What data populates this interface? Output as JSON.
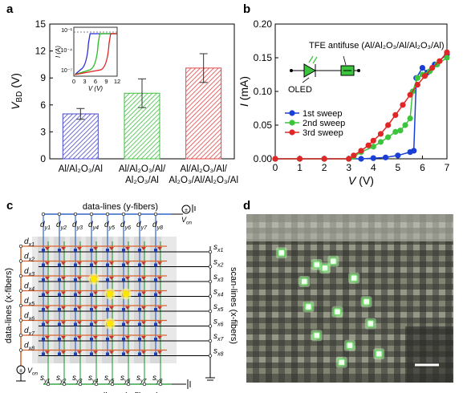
{
  "panels": {
    "a": {
      "label": "a"
    },
    "b": {
      "label": "b"
    },
    "c": {
      "label": "c"
    },
    "d": {
      "label": "d"
    }
  },
  "chart_data": [
    {
      "panel": "a",
      "type": "bar",
      "ylabel": "V_BD (V)",
      "ylim": [
        0,
        15
      ],
      "yticks": [
        0,
        3,
        6,
        9,
        12,
        15
      ],
      "categories": [
        "Al/Al2O3/Al",
        "Al/Al2O3/Al/Al2O3/Al",
        "Al/Al2O3/Al/Al2O3/Al/Al2O3/Al"
      ],
      "category_lines": [
        [
          "Al/Al₂O₃/Al"
        ],
        [
          "Al/Al₂O₃/Al/",
          "Al₂O₃/Al"
        ],
        [
          "Al/Al₂O₃/Al/",
          "Al₂O₃/Al/Al₂O₃/Al"
        ]
      ],
      "values": [
        5.0,
        7.3,
        10.1
      ],
      "errors": [
        0.6,
        1.6,
        1.6
      ],
      "colors": [
        "#4a4ac8",
        "#3cbf3c",
        "#e04545"
      ],
      "inset": {
        "xlabel": "V (V)",
        "ylabel": "I (A)",
        "xticks": [
          0,
          3,
          6,
          9,
          12
        ],
        "ytick_labels": [
          "10⁻¹",
          "10⁻⁴",
          "10⁻⁷"
        ],
        "curves": [
          {
            "color": "#2a2ad8",
            "on_voltage": 4.5
          },
          {
            "color": "#22bb22",
            "on_voltage": 7.2
          },
          {
            "color": "#dd2222",
            "on_voltage": 10.2
          }
        ]
      }
    },
    {
      "panel": "b",
      "type": "line",
      "xlabel": "V (V)",
      "ylabel": "I (mA)",
      "xlim": [
        0,
        7
      ],
      "ylim": [
        0,
        0.2
      ],
      "xticks": [
        0,
        1,
        2,
        3,
        4,
        5,
        6,
        7
      ],
      "yticks": [
        0.0,
        0.05,
        0.1,
        0.15,
        0.2
      ],
      "ytick_labels": [
        "0.00",
        "0.05",
        "0.10",
        "0.15",
        "0.20"
      ],
      "annotations": {
        "device": "TFE antifuse (Al/Al₂O₃/Al/Al₂O₃/Al)",
        "led": "OLED"
      },
      "series": [
        {
          "name": "1st sweep",
          "color": "#1a3fd6",
          "points": [
            [
              0,
              0
            ],
            [
              1,
              0
            ],
            [
              2,
              0
            ],
            [
              3,
              0
            ],
            [
              3.5,
              0
            ],
            [
              4,
              0.001
            ],
            [
              4.5,
              0.002
            ],
            [
              5,
              0.005
            ],
            [
              5.5,
              0.01
            ],
            [
              5.65,
              0.012
            ],
            [
              5.75,
              0.12
            ],
            [
              6,
              0.135
            ],
            [
              6.2,
              0.128
            ],
            [
              6.5,
              0.14
            ],
            [
              7,
              0.155
            ]
          ]
        },
        {
          "name": "2nd sweep",
          "color": "#3cc43c",
          "points": [
            [
              0,
              0
            ],
            [
              1,
              0
            ],
            [
              2,
              0
            ],
            [
              3,
              0
            ],
            [
              3.2,
              0.003
            ],
            [
              3.5,
              0.01
            ],
            [
              4,
              0.018
            ],
            [
              4.3,
              0.025
            ],
            [
              4.6,
              0.032
            ],
            [
              4.9,
              0.04
            ],
            [
              5.1,
              0.042
            ],
            [
              5.3,
              0.05
            ],
            [
              5.5,
              0.06
            ],
            [
              5.6,
              0.1
            ],
            [
              5.8,
              0.12
            ],
            [
              6,
              0.125
            ],
            [
              6.3,
              0.13
            ],
            [
              6.6,
              0.14
            ],
            [
              7,
              0.15
            ]
          ]
        },
        {
          "name": "3rd sweep",
          "color": "#e02626",
          "points": [
            [
              0,
              0
            ],
            [
              1,
              0
            ],
            [
              2,
              0
            ],
            [
              3,
              0
            ],
            [
              3.2,
              0.005
            ],
            [
              3.5,
              0.012
            ],
            [
              3.8,
              0.02
            ],
            [
              4,
              0.027
            ],
            [
              4.3,
              0.037
            ],
            [
              4.6,
              0.05
            ],
            [
              4.9,
              0.065
            ],
            [
              5.2,
              0.08
            ],
            [
              5.5,
              0.095
            ],
            [
              5.8,
              0.11
            ],
            [
              6.1,
              0.123
            ],
            [
              6.4,
              0.135
            ],
            [
              6.7,
              0.145
            ],
            [
              7,
              0.158
            ]
          ]
        }
      ]
    }
  ],
  "circuit": {
    "top_label": "data-lines (y-fibers)",
    "bottom_label": "scan-lines (y-fibers)",
    "left_label": "data-lines (x-fibers)",
    "right_label": "scan-lines (x-fibers)",
    "von": "V",
    "von_sub": "on",
    "d_y": [
      "y1",
      "y2",
      "y3",
      "y4",
      "y5",
      "y6",
      "y7",
      "y8"
    ],
    "d_x": [
      "x1",
      "x2",
      "x3",
      "x4",
      "x5",
      "x6",
      "x7",
      "x8"
    ],
    "s_x": [
      "x1",
      "x2",
      "x3",
      "x4",
      "x5",
      "x6",
      "x7",
      "x8"
    ],
    "s_y": [
      "y1",
      "y2",
      "y3",
      "y4",
      "y5",
      "y6",
      "y7",
      "y8"
    ],
    "d_letter": "d",
    "s_letter": "s",
    "lit": [
      [
        3,
        2
      ],
      [
        4,
        3
      ],
      [
        5,
        3
      ],
      [
        4,
        5
      ]
    ]
  },
  "photo": {
    "lit": [
      [
        0.17,
        0.23
      ],
      [
        0.34,
        0.3
      ],
      [
        0.38,
        0.32
      ],
      [
        0.42,
        0.28
      ],
      [
        0.28,
        0.4
      ],
      [
        0.52,
        0.38
      ],
      [
        0.58,
        0.52
      ],
      [
        0.3,
        0.55
      ],
      [
        0.44,
        0.58
      ],
      [
        0.6,
        0.65
      ],
      [
        0.34,
        0.72
      ],
      [
        0.5,
        0.78
      ],
      [
        0.64,
        0.83
      ],
      [
        0.46,
        0.88
      ]
    ]
  }
}
